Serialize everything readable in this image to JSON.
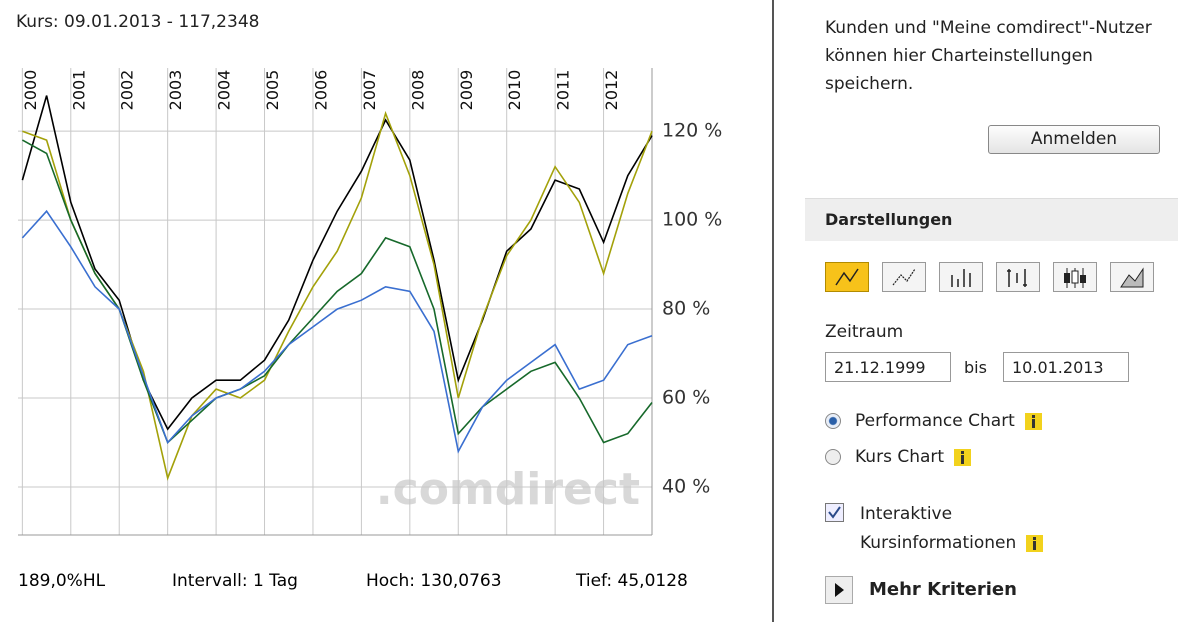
{
  "header": {
    "title": "Kurs: 09.01.2013 - 117,2348"
  },
  "chart_data": {
    "type": "line",
    "watermark": ".comdirect",
    "x": [
      2000,
      2000.5,
      2001,
      2001.5,
      2002,
      2002.5,
      2003,
      2003.5,
      2004,
      2004.5,
      2005,
      2005.5,
      2006,
      2006.5,
      2007,
      2007.5,
      2008,
      2008.5,
      2009,
      2009.5,
      2010,
      2010.5,
      2011,
      2011.5,
      2012,
      2012.5,
      2013
    ],
    "series": [
      {
        "color": "#000000",
        "values": [
          109,
          128,
          104,
          89,
          82,
          64,
          53,
          60,
          64,
          64,
          68.5,
          77.5,
          91,
          102,
          111,
          122.5,
          113.5,
          91,
          64,
          77.5,
          93,
          98,
          109,
          107,
          95,
          110,
          119
        ]
      },
      {
        "color": "#a3a10a",
        "values": [
          120,
          118,
          100,
          88,
          80,
          66,
          42,
          56,
          62,
          60,
          64,
          75,
          85,
          93,
          105,
          124,
          110,
          90,
          60,
          78,
          92,
          100,
          112,
          104,
          88,
          106,
          120
        ]
      },
      {
        "color": "#17692b",
        "values": [
          118,
          115,
          100,
          88,
          80,
          64,
          50,
          55,
          60,
          62,
          65,
          72,
          78,
          84,
          88,
          96,
          94,
          80,
          52,
          58,
          62,
          66,
          68,
          60,
          50,
          52,
          59
        ]
      },
      {
        "color": "#3a6fd0",
        "values": [
          96,
          102,
          94,
          85,
          80,
          65,
          50,
          56,
          60,
          62,
          66,
          72,
          76,
          80,
          82,
          85,
          84,
          75,
          48,
          58,
          64,
          68,
          72,
          62,
          64,
          72,
          74
        ]
      }
    ],
    "xlim": [
      1999.91,
      2013.0
    ],
    "xticks": [
      2000,
      2001,
      2002,
      2003,
      2004,
      2005,
      2006,
      2007,
      2008,
      2009,
      2010,
      2011,
      2012
    ],
    "ylim": [
      29.2,
      134.2
    ],
    "yticks": [
      {
        "value": 40,
        "label": "40 %"
      },
      {
        "value": 60,
        "label": "60 %"
      },
      {
        "value": 80,
        "label": "80 %"
      },
      {
        "value": 100,
        "label": "100 %"
      },
      {
        "value": 120,
        "label": "120 %"
      }
    ],
    "grid": true
  },
  "footer": {
    "range": "189,0%HL",
    "interval": "Intervall: 1 Tag",
    "high": "Hoch: 130,0763",
    "low": "Tief: 45,0128"
  },
  "sidebar": {
    "info": "Kunden und \"Meine comdirect\"-Nutzer können hier Charteinstellungen speichern.",
    "login": "Anmelden",
    "section": "Darstellungen",
    "period_label": "Zeitraum",
    "from": "21.12.1999",
    "to_label": "bis",
    "to": "10.01.2013",
    "radio_performance": "Performance Chart",
    "radio_price": "Kurs Chart",
    "checkbox": "Interaktive Kursinformationen",
    "more": "Mehr Kriterien"
  }
}
